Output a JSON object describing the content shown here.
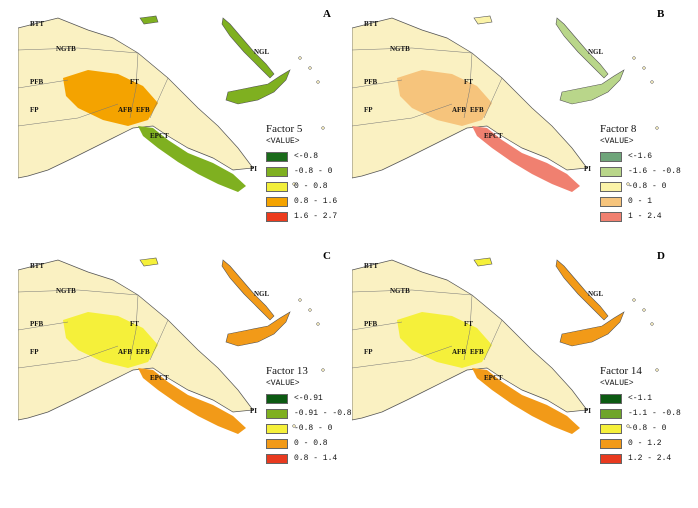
{
  "region_labels": [
    "BTT",
    "NGTB",
    "PFB",
    "FP",
    "FT",
    "AFB",
    "EFB",
    "EPCT",
    "PI",
    "NGL"
  ],
  "panels": [
    {
      "letter": "A",
      "legend_title": "Factor 5",
      "legend_sub": "<VALUE>",
      "classes": [
        {
          "label": "<-0.8",
          "color": "#1a6b1a"
        },
        {
          "label": "-0.8 - 0",
          "color": "#7fb020"
        },
        {
          "label": "0 - 0.8",
          "color": "#f2ef3a"
        },
        {
          "label": "0.8 - 1.6",
          "color": "#f4a300"
        },
        {
          "label": "1.6 - 2.7",
          "color": "#ec3b1d"
        }
      ]
    },
    {
      "letter": "B",
      "legend_title": "Factor 8",
      "legend_sub": "<VALUE>",
      "classes": [
        {
          "label": "<-1.6",
          "color": "#6fa57a"
        },
        {
          "label": "-1.6 - -0.8",
          "color": "#b9d68a"
        },
        {
          "label": "-0.8 - 0",
          "color": "#fbf3a8"
        },
        {
          "label": "0 - 1",
          "color": "#f6c47c"
        },
        {
          "label": "1 - 2.4",
          "color": "#f08070"
        }
      ]
    },
    {
      "letter": "C",
      "legend_title": "Factor 13",
      "legend_sub": "<VALUE>",
      "classes": [
        {
          "label": "<-0.91",
          "color": "#0c5a12"
        },
        {
          "label": "-0.91 - -0.8",
          "color": "#7fb020"
        },
        {
          "label": "-0.8 - 0",
          "color": "#f5f03a"
        },
        {
          "label": "0 - 0.8",
          "color": "#f29a18"
        },
        {
          "label": "0.8 - 1.4",
          "color": "#e83a1f"
        }
      ]
    },
    {
      "letter": "D",
      "legend_title": "Factor 14",
      "legend_sub": "<VALUE>",
      "classes": [
        {
          "label": "<-1.1",
          "color": "#0c5a12"
        },
        {
          "label": "-1.1 - -0.8",
          "color": "#6fa52a"
        },
        {
          "label": "-0.8 - 0",
          "color": "#f5f03a"
        },
        {
          "label": "0 - 1.2",
          "color": "#f29a18"
        },
        {
          "label": "1.2 - 2.4",
          "color": "#e83a1f"
        }
      ]
    }
  ],
  "colors": {
    "land": "#faf1c2",
    "outline": "#555555",
    "region_line": "#777777"
  }
}
